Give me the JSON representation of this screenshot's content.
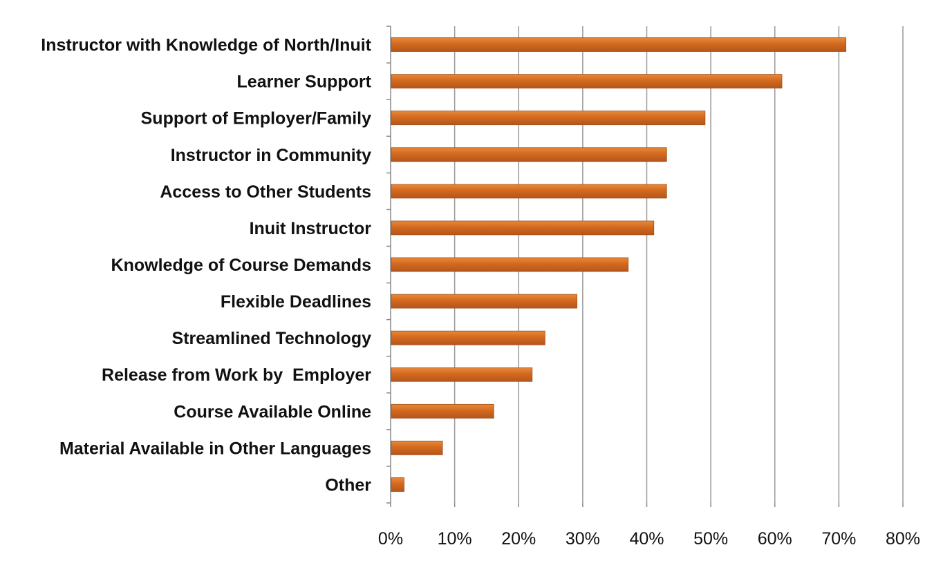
{
  "chart_data": {
    "type": "bar",
    "orientation": "horizontal",
    "title": "",
    "xlabel": "",
    "ylabel": "",
    "categories": [
      "Instructor with Knowledge of North/Inuit",
      "Learner Support",
      "Support of Employer/Family",
      "Instructor in Community",
      "Access to Other Students",
      "Inuit Instructor",
      "Knowledge of Course Demands",
      "Flexible Deadlines",
      "Streamlined Technology",
      "Release from Work by  Employer",
      "Course Available Online",
      "Material Available in Other Languages",
      "Other"
    ],
    "values": [
      71,
      61,
      49,
      43,
      43,
      41,
      37,
      29,
      24,
      22,
      16,
      8,
      2
    ],
    "unit": "%",
    "xlim": [
      0,
      80
    ],
    "xticks": [
      "0%",
      "10%",
      "20%",
      "30%",
      "40%",
      "50%",
      "60%",
      "70%",
      "80%"
    ],
    "grid": true,
    "legend": "none",
    "bar_color": "#D2691E",
    "bar_edge_color": "#A0501A",
    "grid_color": "#999999"
  }
}
